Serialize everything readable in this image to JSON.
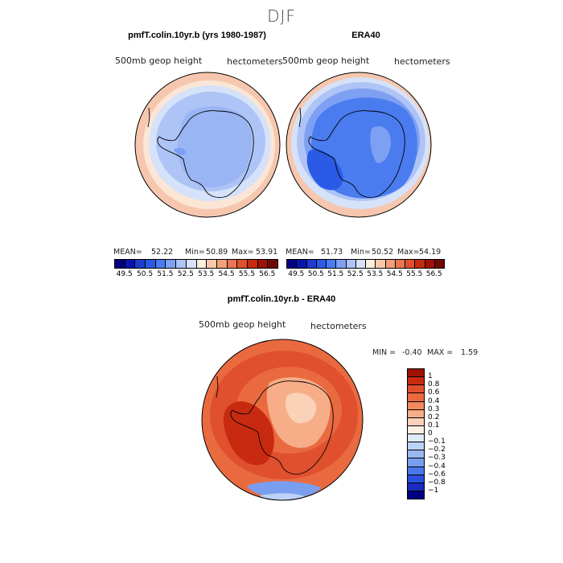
{
  "page": {
    "main_title": "DJF"
  },
  "chart_data": [
    {
      "type": "heatmap",
      "projection": "polar-stereographic-south",
      "title": "pmfT.colin.10yr.b (yrs 1980-1987)",
      "field_label": "500mb  geop  height",
      "units_label": "hectometers",
      "stats": {
        "mean_label": "MEAN=",
        "mean": "52.22",
        "min_label": "Min=",
        "min": "50.89",
        "max_label": "Max=",
        "max": "53.91"
      },
      "colorbar": {
        "orientation": "horizontal",
        "levels": [
          "49.5",
          "50.5",
          "51.5",
          "52.5",
          "53.5",
          "54.5",
          "55.5",
          "56.5"
        ],
        "colors": [
          "#000080",
          "#0a14a8",
          "#1e3ccd",
          "#2a5ae6",
          "#4a7cf0",
          "#7ea0f3",
          "#aec4f6",
          "#d6e2f9",
          "#fdeedd",
          "#f8c8a8",
          "#f2a07c",
          "#ea7552",
          "#e0502e",
          "#c82a10",
          "#9e1206",
          "#6e0a02"
        ]
      },
      "regions": [
        {
          "name": "outer-ring",
          "color": "#f6c7ae"
        },
        {
          "name": "ring-1",
          "color": "#fbe6d6"
        },
        {
          "name": "ring-2",
          "color": "#d6e2f9"
        },
        {
          "name": "ring-3",
          "color": "#aec4f6"
        },
        {
          "name": "core",
          "color": "#9ab5f4"
        },
        {
          "name": "low-patch",
          "color": "#7ea0f3"
        }
      ]
    },
    {
      "type": "heatmap",
      "projection": "polar-stereographic-south",
      "title": "ERA40",
      "field_label": "500mb  geop  height",
      "units_label": "hectometers",
      "stats": {
        "mean_label": "MEAN=",
        "mean": "51.73",
        "min_label": "Min=",
        "min": "50.52",
        "max_label": "Max=",
        "max": "54.19"
      },
      "colorbar": {
        "orientation": "horizontal",
        "levels": [
          "49.5",
          "50.5",
          "51.5",
          "52.5",
          "53.5",
          "54.5",
          "55.5",
          "56.5"
        ],
        "colors": [
          "#000080",
          "#0a14a8",
          "#1e3ccd",
          "#2a5ae6",
          "#4a7cf0",
          "#7ea0f3",
          "#aec4f6",
          "#d6e2f9",
          "#fdeedd",
          "#f8c8a8",
          "#f2a07c",
          "#ea7552",
          "#e0502e",
          "#c82a10",
          "#9e1206",
          "#6e0a02"
        ]
      },
      "regions": [
        {
          "name": "outer-ring",
          "color": "#f6c7ae"
        },
        {
          "name": "ring-1",
          "color": "#d6e2f9"
        },
        {
          "name": "ring-2",
          "color": "#aec4f6"
        },
        {
          "name": "ring-3",
          "color": "#7ea0f3"
        },
        {
          "name": "core",
          "color": "#4a7cf0"
        },
        {
          "name": "low-patch",
          "color": "#2a5ae6"
        },
        {
          "name": "high-patch",
          "color": "#7ea0f3"
        }
      ]
    },
    {
      "type": "heatmap",
      "projection": "polar-stereographic-south",
      "title": "pmfT.colin.10yr.b - ERA40",
      "field_label": "500mb  geop  height",
      "units_label": "hectometers",
      "stats": {
        "min_label": "MIN =",
        "min": "-0.40",
        "max_label": "MAX =",
        "max": "1.59"
      },
      "colorbar": {
        "orientation": "vertical",
        "levels": [
          "1",
          "0.8",
          "0.6",
          "0.4",
          "0.3",
          "0.2",
          "0.1",
          "0",
          "−0.1",
          "−0.2",
          "−0.3",
          "−0.4",
          "−0.6",
          "−0.8",
          "−1"
        ],
        "colors": [
          "#9e1206",
          "#c82a10",
          "#e0502e",
          "#ea6a40",
          "#f08a5e",
          "#f6ad88",
          "#fad2b8",
          "#fdf0e4",
          "#ddeafa",
          "#bcd2f6",
          "#9ab8f2",
          "#7a9eef",
          "#4a78ea",
          "#2a50de",
          "#1a2cc0",
          "#000080"
        ]
      },
      "regions": [
        {
          "name": "outer-ring",
          "color": "#ea6a40"
        },
        {
          "name": "ring-1",
          "color": "#e0502e"
        },
        {
          "name": "ring-2",
          "color": "#ea6a40"
        },
        {
          "name": "west-max",
          "color": "#c82a10"
        },
        {
          "name": "plateau",
          "color": "#f6ad88"
        },
        {
          "name": "dome",
          "color": "#fad2b8"
        },
        {
          "name": "south-minimum",
          "color": "#7a9eef"
        },
        {
          "name": "south-edge",
          "color": "#bcd2f6"
        }
      ]
    }
  ]
}
